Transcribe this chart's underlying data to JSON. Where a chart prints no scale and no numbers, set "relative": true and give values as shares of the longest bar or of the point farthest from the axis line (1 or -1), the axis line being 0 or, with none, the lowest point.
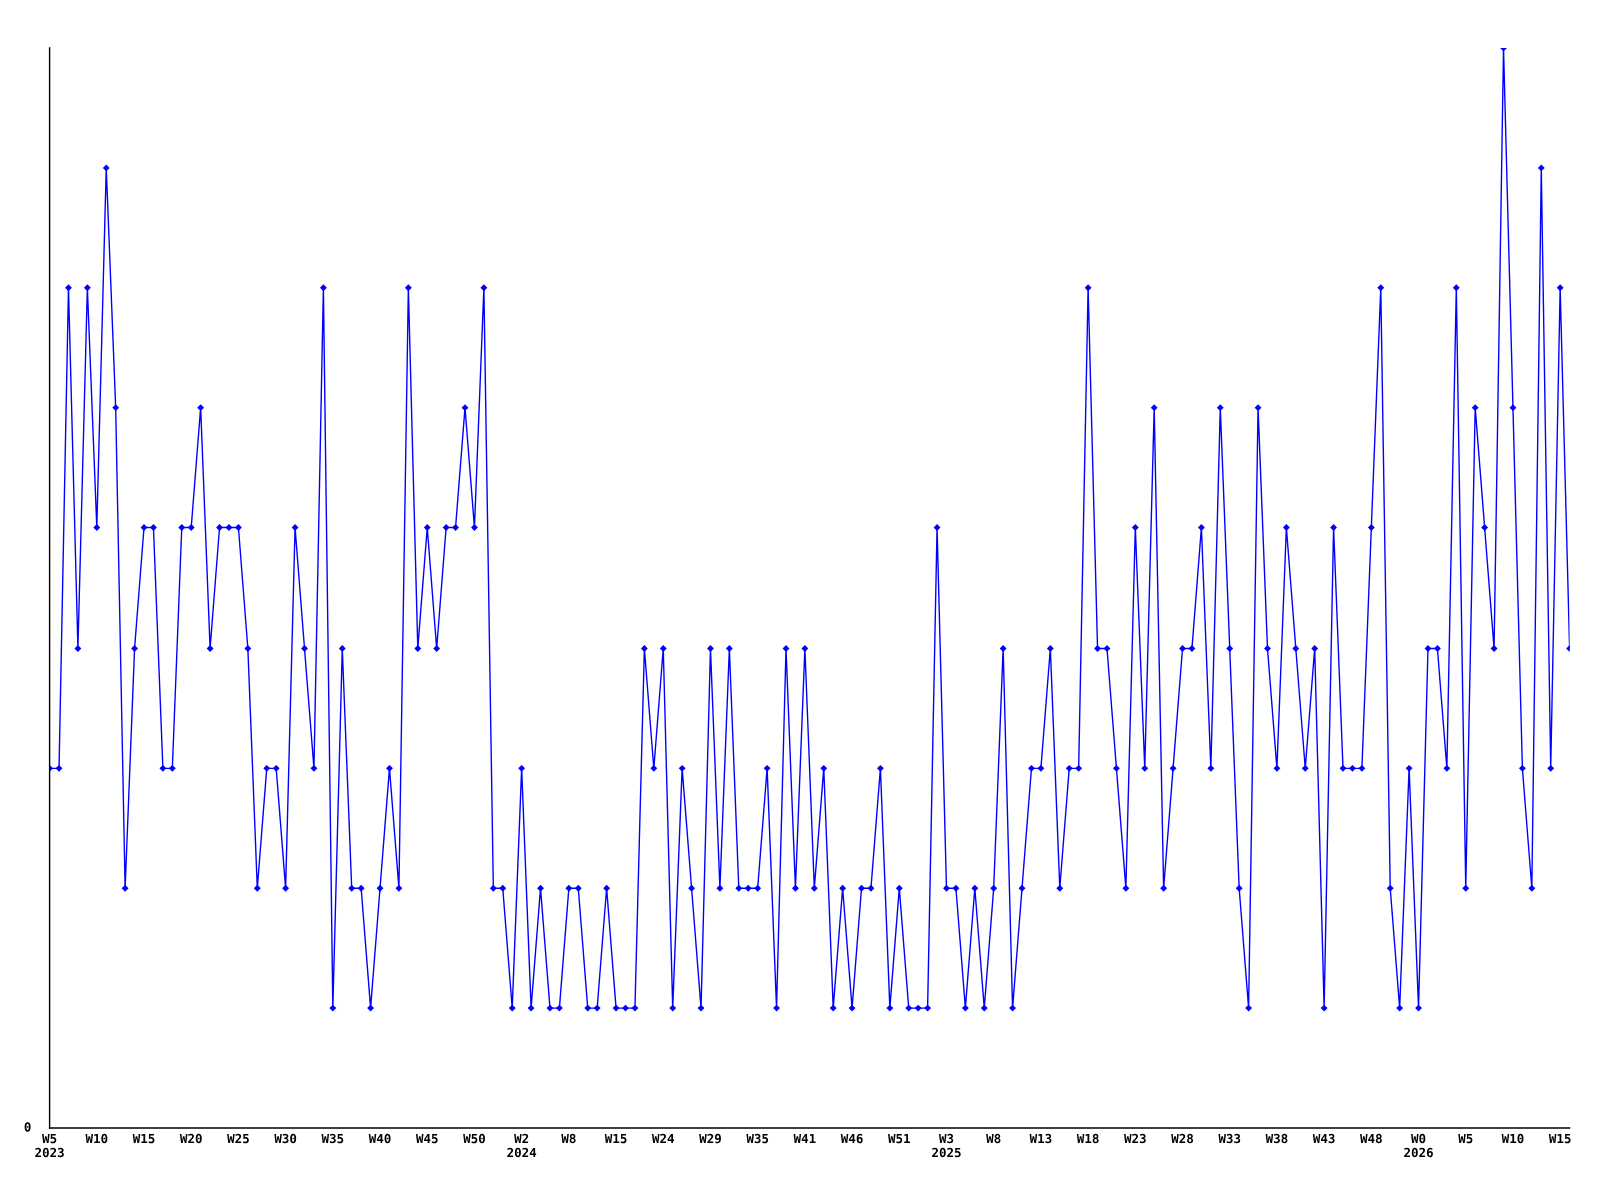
{
  "chart_data": {
    "type": "line",
    "relative": true,
    "marker": "diamond",
    "line_style": "solid",
    "annotations": [
      "0"
    ],
    "categories": [
      "W5\n2023",
      null,
      null,
      null,
      null,
      "W10",
      null,
      null,
      null,
      null,
      "W15",
      null,
      null,
      null,
      null,
      "W20",
      null,
      null,
      null,
      null,
      "W25",
      null,
      null,
      null,
      null,
      "W30",
      null,
      null,
      null,
      null,
      "W35",
      null,
      null,
      null,
      null,
      "W40",
      null,
      null,
      null,
      null,
      "W45",
      null,
      null,
      null,
      null,
      "W50",
      null,
      null,
      null,
      null,
      "W2\n2024",
      null,
      null,
      null,
      null,
      "W8",
      null,
      null,
      null,
      null,
      "W15",
      null,
      null,
      null,
      null,
      "W24",
      null,
      null,
      null,
      null,
      "W29",
      null,
      null,
      null,
      null,
      "W35",
      null,
      null,
      null,
      null,
      "W41",
      null,
      null,
      null,
      null,
      "W46",
      null,
      null,
      null,
      null,
      "W51",
      null,
      null,
      null,
      null,
      "W3\n2025",
      null,
      null,
      null,
      null,
      "W8",
      null,
      null,
      null,
      null,
      "W13",
      null,
      null,
      null,
      null,
      "W18",
      null,
      null,
      null,
      null,
      "W23",
      null,
      null,
      null,
      null,
      "W28",
      null,
      null,
      null,
      null,
      "W33",
      null,
      null,
      null,
      null,
      "W38",
      null,
      null,
      null,
      null,
      "W43",
      null,
      null,
      null,
      null,
      "W48",
      null,
      null,
      null,
      null,
      "W0\n2026",
      null,
      null,
      null,
      null,
      "W5",
      null,
      null,
      null,
      null,
      "W10",
      null,
      null,
      null,
      null,
      "W15",
      null
    ],
    "series": [
      {
        "color": "#0000ff",
        "values": [
          0.333,
          0.333,
          0.778,
          0.444,
          0.778,
          0.556,
          0.889,
          0.667,
          0.222,
          0.444,
          0.556,
          0.556,
          0.333,
          0.333,
          0.556,
          0.556,
          0.667,
          0.444,
          0.556,
          0.556,
          0.556,
          0.444,
          0.222,
          0.333,
          0.333,
          0.222,
          0.556,
          0.444,
          0.333,
          0.778,
          0.111,
          0.444,
          0.222,
          0.222,
          0.111,
          0.222,
          0.333,
          0.222,
          0.778,
          0.444,
          0.556,
          0.444,
          0.556,
          0.556,
          0.667,
          0.556,
          0.778,
          0.222,
          0.222,
          0.111,
          0.333,
          0.111,
          0.222,
          0.111,
          0.111,
          0.222,
          0.222,
          0.111,
          0.111,
          0.222,
          0.111,
          0.111,
          0.111,
          0.444,
          0.333,
          0.444,
          0.111,
          0.333,
          0.222,
          0.111,
          0.444,
          0.222,
          0.444,
          0.222,
          0.222,
          0.222,
          0.333,
          0.111,
          0.444,
          0.222,
          0.444,
          0.222,
          0.333,
          0.111,
          0.222,
          0.111,
          0.222,
          0.222,
          0.333,
          0.111,
          0.222,
          0.111,
          0.111,
          0.111,
          0.556,
          0.222,
          0.222,
          0.111,
          0.222,
          0.111,
          0.222,
          0.444,
          0.111,
          0.222,
          0.333,
          0.333,
          0.444,
          0.222,
          0.333,
          0.333,
          0.778,
          0.444,
          0.444,
          0.333,
          0.222,
          0.556,
          0.333,
          0.667,
          0.222,
          0.333,
          0.444,
          0.444,
          0.556,
          0.333,
          0.667,
          0.444,
          0.222,
          0.111,
          0.667,
          0.444,
          0.333,
          0.556,
          0.444,
          0.333,
          0.444,
          0.111,
          0.556,
          0.333,
          0.333,
          0.333,
          0.556,
          0.778,
          0.222,
          0.111,
          0.333,
          0.111,
          0.444,
          0.444,
          0.333,
          0.778,
          0.222,
          0.667,
          0.556,
          0.444,
          1,
          0.667,
          0.333,
          0.222,
          0.889,
          0.333,
          0.778,
          0.444
        ]
      }
    ]
  }
}
